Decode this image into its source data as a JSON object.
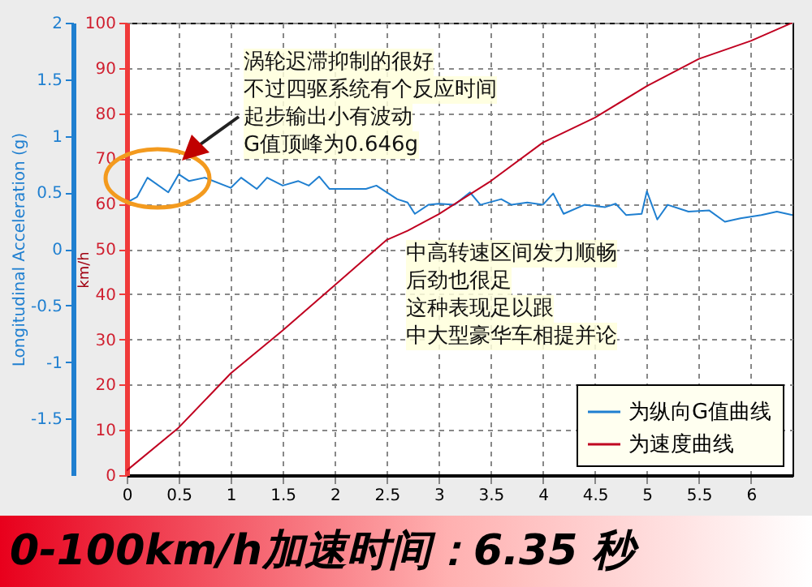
{
  "chart_data": {
    "type": "line",
    "title": "0-100km/h加速时间：6.35 秒",
    "ylabel": "km/h",
    "y2label": "Longitudinal Acceleration (g)",
    "annotations": [
      "涡轮迟滞抑制的很好",
      "不过四驱系统有个反应时间",
      "起步输出小有波动",
      "G值顶峰为0.646g",
      "中高转速区间发力顺畅",
      "后劲也很足",
      "这种表现足以跟",
      "中大型豪华车相提并论"
    ],
    "xlim": [
      0,
      6.4
    ],
    "xticks": [
      0,
      0.5,
      1,
      1.5,
      2,
      2.5,
      3,
      3.5,
      4,
      4.5,
      5,
      5.5,
      6
    ],
    "ylim": [
      0,
      100
    ],
    "yticks": [
      0,
      10,
      20,
      30,
      40,
      50,
      60,
      70,
      80,
      90,
      100
    ],
    "y2lim": [
      -2,
      2
    ],
    "y2ticks": [
      -1.5,
      -1,
      -0.5,
      0,
      0.5,
      1,
      1.5,
      2
    ],
    "grid": true,
    "legend": "bottom right",
    "line_style": "solid",
    "series": [
      {
        "name": "为纵向G值曲线",
        "color": "#1f7fd0",
        "axis": "y2",
        "x": [
          0,
          0.1,
          0.2,
          0.4,
          0.5,
          0.6,
          0.75,
          1.0,
          1.1,
          1.25,
          1.35,
          1.5,
          1.65,
          1.75,
          1.85,
          1.95,
          2.3,
          2.4,
          2.6,
          2.7,
          2.77,
          2.9,
          3.0,
          3.15,
          3.3,
          3.4,
          3.6,
          3.7,
          3.85,
          4.0,
          4.1,
          4.2,
          4.4,
          4.6,
          4.7,
          4.8,
          4.95,
          5.0,
          5.1,
          5.2,
          5.4,
          5.6,
          5.75,
          5.9,
          6.1,
          6.25,
          6.4
        ],
        "values": [
          0.41,
          0.46,
          0.63,
          0.5,
          0.66,
          0.6,
          0.63,
          0.54,
          0.63,
          0.53,
          0.63,
          0.56,
          0.6,
          0.56,
          0.64,
          0.53,
          0.53,
          0.56,
          0.44,
          0.41,
          0.31,
          0.39,
          0.4,
          0.39,
          0.5,
          0.39,
          0.44,
          0.39,
          0.41,
          0.39,
          0.49,
          0.31,
          0.39,
          0.37,
          0.4,
          0.3,
          0.31,
          0.51,
          0.26,
          0.39,
          0.33,
          0.34,
          0.24,
          0.27,
          0.3,
          0.33,
          0.3
        ]
      },
      {
        "name": "为速度曲线",
        "color": "#c00020",
        "axis": "y",
        "x": [
          0,
          0.5,
          1.0,
          1.5,
          2.0,
          2.5,
          2.7,
          3.0,
          3.5,
          4.0,
          4.5,
          5.0,
          5.5,
          6.0,
          6.4
        ],
        "values": [
          1,
          10.5,
          22.5,
          32,
          42,
          52,
          54,
          57.7,
          65,
          73.5,
          79,
          86,
          92,
          96,
          100
        ]
      }
    ]
  }
}
